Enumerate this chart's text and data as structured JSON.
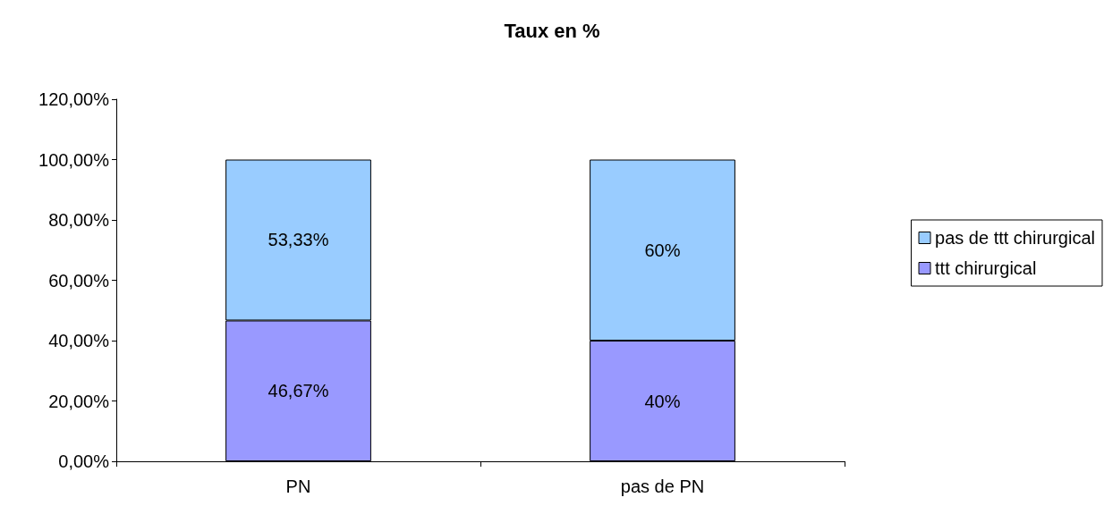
{
  "chart_data": {
    "type": "bar",
    "title": "Taux en %",
    "categories": [
      "PN",
      "pas de PN"
    ],
    "stacked": true,
    "series": [
      {
        "name": "ttt chirurgical",
        "color": "#9999ff",
        "values": [
          46.67,
          40
        ],
        "value_labels": [
          "46,67%",
          "40%"
        ]
      },
      {
        "name": "pas de ttt chirurgical",
        "color": "#99ccff",
        "values": [
          53.33,
          60
        ],
        "value_labels": [
          "53,33%",
          "60%"
        ]
      }
    ],
    "ylim": [
      0,
      120
    ],
    "yticks": [
      {
        "value": 0,
        "label": "0,00%"
      },
      {
        "value": 20,
        "label": "20,00%"
      },
      {
        "value": 40,
        "label": "40,00%"
      },
      {
        "value": 60,
        "label": "60,00%"
      },
      {
        "value": 80,
        "label": "80,00%"
      },
      {
        "value": 100,
        "label": "100,00%"
      },
      {
        "value": 120,
        "label": "120,00%"
      }
    ],
    "grid": false,
    "legend": "right"
  }
}
